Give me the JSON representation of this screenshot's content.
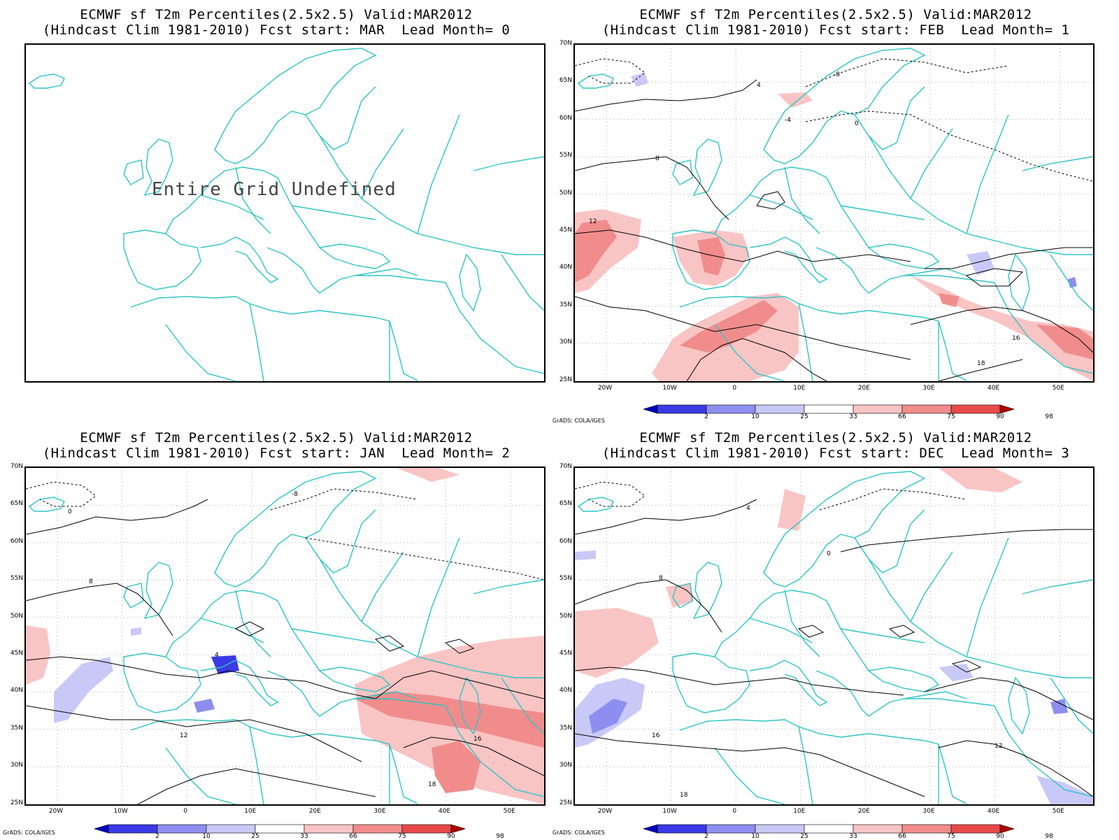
{
  "colors": {
    "coast": "#2ec4c4",
    "contour": "#000000",
    "warm": [
      "#f9c4c4",
      "#f18c8c",
      "#e84a4a",
      "#b00000"
    ],
    "cold": [
      "#c9c9f8",
      "#8e8ef0",
      "#3a3ae6",
      "#0000a0"
    ]
  },
  "lat_labels": [
    "70N",
    "65N",
    "60N",
    "55N",
    "50N",
    "45N",
    "40N",
    "35N",
    "30N",
    "25N"
  ],
  "lon_labels": [
    "20W",
    "10W",
    "0",
    "10E",
    "20E",
    "30E",
    "40E",
    "50E"
  ],
  "colorbar": {
    "labels": [
      "2",
      "10",
      "25",
      "33",
      "66",
      "75",
      "90",
      "98"
    ],
    "colors": [
      "#0000c0",
      "#3a3ae6",
      "#8e8ef0",
      "#c9c9f8",
      "#ffffff",
      "#f9c4c4",
      "#f18c8c",
      "#e84a4a",
      "#b00000"
    ]
  },
  "grads_credit": "GrADS: COLA/IGES",
  "panels": [
    {
      "title1": "ECMWF sf T2m Percentiles(2.5x2.5) Valid:MAR2012",
      "title2": "(Hindcast Clim 1981-2010) Fcst start: MAR  Lead Month= 0",
      "undefined_text": "Entire Grid Undefined"
    },
    {
      "title1": "ECMWF sf T2m Percentiles(2.5x2.5) Valid:MAR2012",
      "title2": "(Hindcast Clim 1981-2010) Fcst start: FEB  Lead Month= 1",
      "contour_labels": [
        "-8",
        "-4",
        "0",
        "4",
        "8",
        "12",
        "16",
        "18"
      ]
    },
    {
      "title1": "ECMWF sf T2m Percentiles(2.5x2.5) Valid:MAR2012",
      "title2": "(Hindcast Clim 1981-2010) Fcst start: JAN  Lead Month= 2",
      "contour_labels": [
        "-8",
        "0",
        "4",
        "8",
        "12",
        "16",
        "18"
      ]
    },
    {
      "title1": "ECMWF sf T2m Percentiles(2.5x2.5) Valid:MAR2012",
      "title2": "(Hindcast Clim 1981-2010) Fcst start: DEC  Lead Month= 3",
      "contour_labels": [
        "0",
        "4",
        "8",
        "12",
        "16",
        "18"
      ]
    }
  ]
}
